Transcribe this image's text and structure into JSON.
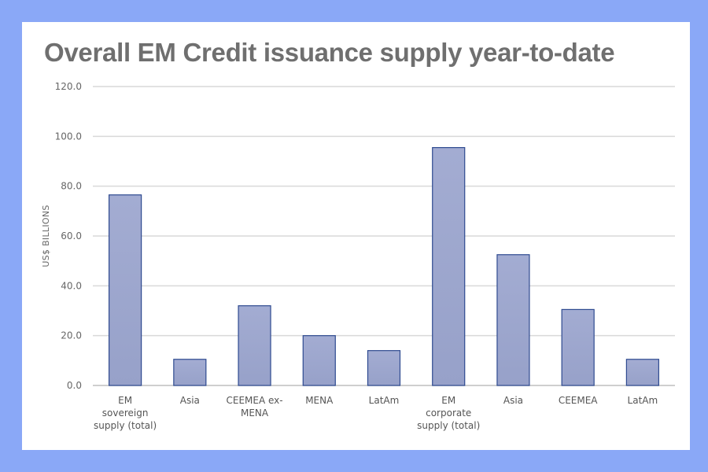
{
  "chart_data": {
    "type": "bar",
    "title": "Overall EM Credit issuance supply year-to-date",
    "xlabel": "",
    "ylabel": "US$ BILLIONS",
    "ylim": [
      0,
      120
    ],
    "yticks": [
      "0.0",
      "20.0",
      "40.0",
      "60.0",
      "80.0",
      "100.0",
      "120.0"
    ],
    "categories": [
      [
        "EM",
        "sovereign",
        "supply (total)"
      ],
      [
        "Asia"
      ],
      [
        "CEEMEA ex-",
        "MENA"
      ],
      [
        "MENA"
      ],
      [
        "LatAm"
      ],
      [
        "EM",
        "corporate",
        "supply (total)"
      ],
      [
        "Asia"
      ],
      [
        "CEEMEA"
      ],
      [
        "LatAm"
      ]
    ],
    "values": [
      76.5,
      10.5,
      32.0,
      20.0,
      14.0,
      95.5,
      52.5,
      30.5,
      10.5
    ],
    "grid": true,
    "legend": "none",
    "colors": {
      "bar": "#97a1c9",
      "bar_top": "#a3acd2",
      "bar_edge": "#2e4a90",
      "grid": "#d9d9d9"
    }
  }
}
